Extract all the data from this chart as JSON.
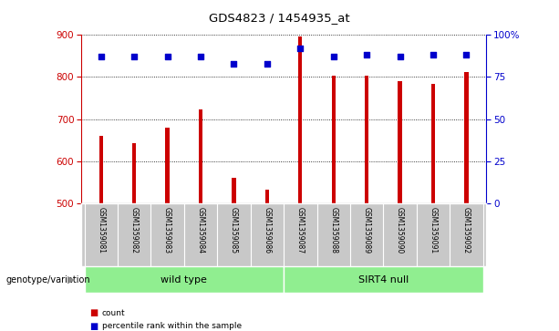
{
  "title": "GDS4823 / 1454935_at",
  "samples": [
    "GSM1359081",
    "GSM1359082",
    "GSM1359083",
    "GSM1359084",
    "GSM1359085",
    "GSM1359086",
    "GSM1359087",
    "GSM1359088",
    "GSM1359089",
    "GSM1359090",
    "GSM1359091",
    "GSM1359092"
  ],
  "counts": [
    660,
    643,
    680,
    722,
    560,
    534,
    895,
    803,
    803,
    790,
    783,
    812
  ],
  "percentile_ranks": [
    87,
    87,
    87,
    87,
    83,
    83,
    92,
    87,
    88,
    87,
    88,
    88
  ],
  "ylim": [
    500,
    900
  ],
  "yticks": [
    500,
    600,
    700,
    800,
    900
  ],
  "right_yticks": [
    0,
    25,
    50,
    75,
    100
  ],
  "right_ylim": [
    0,
    100
  ],
  "bar_color": "#cc0000",
  "dot_color": "#0000cc",
  "bar_width": 0.12,
  "tick_area_color": "#c8c8c8",
  "group_color": "#90ee90",
  "left_axis_color": "#cc0000",
  "right_axis_color": "#0000cc",
  "group_label_prefix": "genotype/variation",
  "legend_count_label": "count",
  "legend_pct_label": "percentile rank within the sample"
}
